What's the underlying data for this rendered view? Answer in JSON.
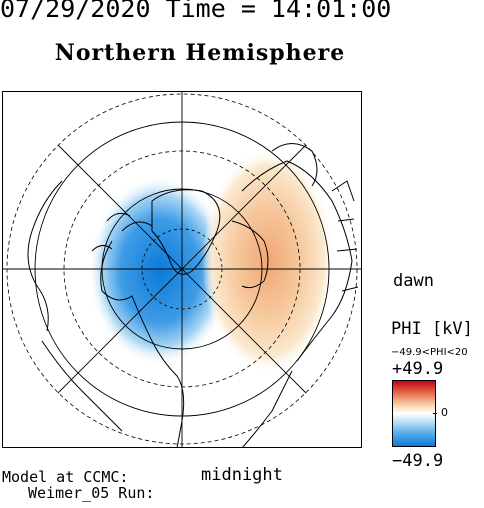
{
  "header": {
    "date_time": "07/29/2020 Time = 14:01:00"
  },
  "map": {
    "title": "Northern Hemisphere",
    "labels": {
      "dawn": "dawn",
      "midnight": "midnight"
    }
  },
  "legend": {
    "quantity": "PHI [kV]",
    "range_text": "−49.9<PHI<20",
    "max_label": "+49.9",
    "zero_label": "0",
    "min_label": "−49.9",
    "colors": {
      "max": "#c4001a",
      "mid": "#ffffff",
      "min": "#0a7ad9"
    }
  },
  "footer": {
    "model_line1": "Model at CCMC:",
    "model_line2": "Weimer_05 Run:"
  }
}
